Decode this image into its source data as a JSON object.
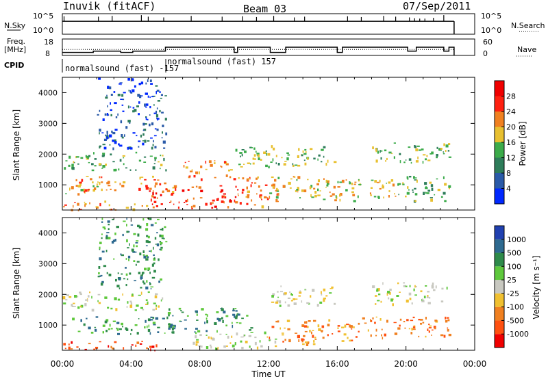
{
  "header": {
    "station": "Inuvik (fitACF)",
    "beam": "Beam 03",
    "date": "07/Sep/2011"
  },
  "strip_labels": {
    "nsky": "N.Sky",
    "nsky_ticks": [
      "10^5",
      "10^0"
    ],
    "nsearch": "N.Search",
    "nsearch_ticks": [
      "10^5",
      "10^0"
    ],
    "freq_label_1": "Freq.",
    "freq_label_2": "[MHz]",
    "freq_ticks": [
      "18",
      "8"
    ],
    "nave": "Nave",
    "nave_ticks": [
      "60",
      "0"
    ],
    "cpid": "CPID"
  },
  "cpid_segments": [
    {
      "label": "normalsound (fast) -157"
    },
    {
      "label": "normalsound (fast) 157"
    }
  ],
  "chart_data": [
    {
      "type": "line",
      "name": "N.Sky / N.Search strip",
      "x_unit": "hours UT",
      "baseline_log10": 3.2,
      "spikes": [
        {
          "x": 0.1,
          "log10": 4.5
        },
        {
          "x": 2.1,
          "log10": 4.4
        },
        {
          "x": 2.9,
          "log10": 4.6
        },
        {
          "x": 4.6,
          "log10": 4.8
        },
        {
          "x": 5.0,
          "log10": 4.4
        },
        {
          "x": 5.9,
          "log10": 4.2
        },
        {
          "x": 7.5,
          "log10": 4.6
        },
        {
          "x": 9.3,
          "log10": 4.4
        },
        {
          "x": 10.5,
          "log10": 4.5
        },
        {
          "x": 11.3,
          "log10": 4.3
        },
        {
          "x": 12.3,
          "log10": 4.6
        },
        {
          "x": 13.5,
          "log10": 4.2
        },
        {
          "x": 14.1,
          "log10": 4.4
        },
        {
          "x": 16.6,
          "log10": 4.5
        },
        {
          "x": 17.4,
          "log10": 4.3
        },
        {
          "x": 18.7,
          "log10": 4.6
        },
        {
          "x": 19.4,
          "log10": 4.4
        },
        {
          "x": 20.2,
          "log10": 4.2
        },
        {
          "x": 20.5,
          "log10": 4.0
        },
        {
          "x": 20.8,
          "log10": 3.9
        },
        {
          "x": 21.1,
          "log10": 3.9
        },
        {
          "x": 21.6,
          "log10": 4.1
        },
        {
          "x": 22.2,
          "log10": 4.8
        }
      ],
      "x_range": [
        0,
        22.8
      ]
    },
    {
      "type": "line",
      "name": "Freq / Nave strip",
      "freq_mhz_steps": [
        {
          "x0": 0.0,
          "x1": 1.8,
          "y": 9.8
        },
        {
          "x0": 1.8,
          "x1": 3.4,
          "y": 10.6
        },
        {
          "x0": 3.4,
          "x1": 4.1,
          "y": 9.8
        },
        {
          "x0": 4.1,
          "x1": 4.9,
          "y": 10.6
        },
        {
          "x0": 4.9,
          "x1": 6.0,
          "y": 10.6
        },
        {
          "x0": 6.0,
          "x1": 10.0,
          "y": 13.0
        },
        {
          "x0": 10.0,
          "x1": 10.2,
          "y": 9.8
        },
        {
          "x0": 10.2,
          "x1": 12.1,
          "y": 13.0
        },
        {
          "x0": 12.1,
          "x1": 13.0,
          "y": 9.8
        },
        {
          "x0": 13.0,
          "x1": 14.2,
          "y": 13.0
        },
        {
          "x0": 14.2,
          "x1": 16.0,
          "y": 13.0
        },
        {
          "x0": 16.0,
          "x1": 16.3,
          "y": 9.8
        },
        {
          "x0": 16.3,
          "x1": 20.1,
          "y": 13.0
        },
        {
          "x0": 20.1,
          "x1": 20.6,
          "y": 10.6
        },
        {
          "x0": 20.6,
          "x1": 22.2,
          "y": 13.0
        },
        {
          "x0": 22.2,
          "x1": 22.5,
          "y": 10.6
        },
        {
          "x0": 22.5,
          "x1": 22.8,
          "y": 13.0
        }
      ],
      "freq_range": [
        8,
        18
      ],
      "nave_dotted": 22,
      "nave_range": [
        0,
        60
      ]
    },
    {
      "type": "heatmap",
      "name": "Power",
      "xlabel": "",
      "ylabel": "Slant Range [km]",
      "x_ticks": [
        "00:00",
        "04:00",
        "08:00",
        "12:00",
        "16:00",
        "20:00",
        "00:00"
      ],
      "x_range": [
        0,
        24
      ],
      "y_range": [
        180,
        4500
      ],
      "y_ticks": [
        1000,
        2000,
        3000,
        4000
      ],
      "colorbar": {
        "label": "Power [dB]",
        "ticks": [
          "4",
          "8",
          "12",
          "16",
          "20",
          "24",
          "28"
        ],
        "colors": [
          "#0028ff",
          "#2a5aa8",
          "#2e7d5a",
          "#3cab4a",
          "#e8c030",
          "#f08020",
          "#ff2010",
          "#f00000"
        ]
      },
      "echo_regions": [
        {
          "x0": 0.0,
          "x1": 5.5,
          "y0": 200,
          "y1": 500,
          "level": 5
        },
        {
          "x0": 0.0,
          "x1": 2.0,
          "y0": 700,
          "y1": 1100,
          "level": 4
        },
        {
          "x0": 0.0,
          "x1": 6.0,
          "y0": 1500,
          "y1": 2100,
          "level": 3
        },
        {
          "x0": 0.5,
          "x1": 6.5,
          "y0": 800,
          "y1": 1300,
          "level": 5
        },
        {
          "x0": 2.0,
          "x1": 6.0,
          "y0": 2200,
          "y1": 4500,
          "level": 1
        },
        {
          "x0": 5.0,
          "x1": 10.5,
          "y0": 250,
          "y1": 1000,
          "level": 6
        },
        {
          "x0": 7.0,
          "x1": 10.0,
          "y0": 1200,
          "y1": 1800,
          "level": 5
        },
        {
          "x0": 10.0,
          "x1": 12.5,
          "y0": 300,
          "y1": 1300,
          "level": 5
        },
        {
          "x0": 10.0,
          "x1": 16.0,
          "y0": 1600,
          "y1": 2300,
          "level": 3
        },
        {
          "x0": 12.0,
          "x1": 17.0,
          "y0": 500,
          "y1": 1300,
          "level": 4
        },
        {
          "x0": 16.0,
          "x1": 20.0,
          "y0": 600,
          "y1": 1200,
          "level": 4
        },
        {
          "x0": 18.0,
          "x1": 22.5,
          "y0": 1700,
          "y1": 2400,
          "level": 3
        },
        {
          "x0": 19.5,
          "x1": 22.5,
          "y0": 500,
          "y1": 1300,
          "level": 3
        }
      ]
    },
    {
      "type": "heatmap",
      "name": "Velocity",
      "xlabel": "Time UT",
      "ylabel": "Slant Range [km]",
      "x_ticks": [
        "00:00",
        "04:00",
        "08:00",
        "12:00",
        "16:00",
        "20:00",
        "00:00"
      ],
      "x_range": [
        0,
        24
      ],
      "y_range": [
        180,
        4500
      ],
      "y_ticks": [
        1000,
        2000,
        3000,
        4000
      ],
      "colorbar": {
        "label": "Velocity [m s⁻¹]",
        "ticks": [
          "1000",
          "500",
          "100",
          "25",
          "-25",
          "-100",
          "-500",
          "-1000"
        ],
        "colors": [
          "#2040b0",
          "#2e6a90",
          "#2e8a4a",
          "#5ec83c",
          "#c8c8c0",
          "#f0c030",
          "#f08020",
          "#ff5010",
          "#f00000"
        ]
      },
      "echo_regions": [
        {
          "x0": 0.0,
          "x1": 5.5,
          "y0": 200,
          "y1": 500,
          "level": 7
        },
        {
          "x0": 0.0,
          "x1": 6.0,
          "y0": 1500,
          "y1": 2100,
          "level": 4
        },
        {
          "x0": 0.5,
          "x1": 6.5,
          "y0": 700,
          "y1": 1300,
          "level": 2
        },
        {
          "x0": 2.0,
          "x1": 6.0,
          "y0": 2200,
          "y1": 4500,
          "level": 2
        },
        {
          "x0": 6.0,
          "x1": 11.0,
          "y0": 800,
          "y1": 1600,
          "level": 2
        },
        {
          "x0": 7.0,
          "x1": 12.5,
          "y0": 250,
          "y1": 800,
          "level": 4
        },
        {
          "x0": 12.0,
          "x1": 16.0,
          "y0": 1600,
          "y1": 2300,
          "level": 4
        },
        {
          "x0": 12.0,
          "x1": 17.0,
          "y0": 400,
          "y1": 1200,
          "level": 6
        },
        {
          "x0": 17.0,
          "x1": 22.5,
          "y0": 600,
          "y1": 1300,
          "level": 6
        },
        {
          "x0": 18.0,
          "x1": 22.5,
          "y0": 1700,
          "y1": 2400,
          "level": 4
        }
      ]
    }
  ]
}
